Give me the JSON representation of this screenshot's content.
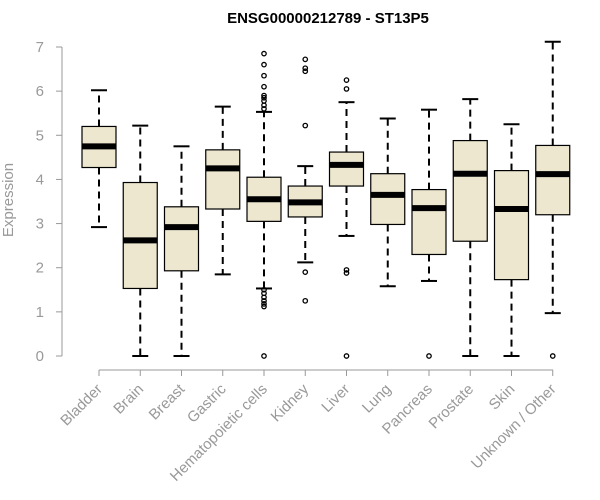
{
  "chart_data": {
    "type": "box",
    "title": "ENSG00000212789 - ST13P5",
    "ylabel": "Expression",
    "xlabel": "",
    "ylim": [
      0,
      7
    ],
    "yticks": [
      "0",
      "1",
      "2",
      "3",
      "4",
      "5",
      "6",
      "7"
    ],
    "grid": false,
    "legend": "none",
    "colors": {
      "box_fill": "#ede7cf",
      "box_stroke": "#000000",
      "median": "#000000",
      "axis": "#999999",
      "text": "#999999",
      "title": "#000000"
    },
    "categories": [
      "Bladder",
      "Brain",
      "Breast",
      "Gastric",
      "Hematopoietic cells",
      "Kidney",
      "Liver",
      "Lung",
      "Pancreas",
      "Prostate",
      "Skin",
      "Unknown / Other"
    ],
    "boxes": [
      {
        "category": "Bladder",
        "whisker_low": 2.92,
        "q1": 4.27,
        "median": 4.75,
        "q3": 5.2,
        "whisker_high": 6.02,
        "outliers": []
      },
      {
        "category": "Brain",
        "whisker_low": 0.0,
        "q1": 1.53,
        "median": 2.62,
        "q3": 3.93,
        "whisker_high": 5.22,
        "outliers": []
      },
      {
        "category": "Breast",
        "whisker_low": 0.0,
        "q1": 1.93,
        "median": 2.92,
        "q3": 3.38,
        "whisker_high": 4.75,
        "outliers": []
      },
      {
        "category": "Gastric",
        "whisker_low": 1.85,
        "q1": 3.33,
        "median": 4.25,
        "q3": 4.67,
        "whisker_high": 5.65,
        "outliers": []
      },
      {
        "category": "Hematopoietic cells",
        "whisker_low": 1.53,
        "q1": 3.05,
        "median": 3.55,
        "q3": 4.05,
        "whisker_high": 5.53,
        "outliers": [
          0.0,
          1.12,
          1.18,
          1.25,
          1.33,
          1.42,
          1.5,
          5.6,
          5.68,
          5.78,
          5.85,
          5.9,
          6.1,
          6.35,
          6.6,
          6.85
        ]
      },
      {
        "category": "Kidney",
        "whisker_low": 2.12,
        "q1": 3.15,
        "median": 3.48,
        "q3": 3.85,
        "whisker_high": 4.3,
        "outliers": [
          1.25,
          1.9,
          5.22,
          6.45,
          6.52,
          6.72
        ]
      },
      {
        "category": "Liver",
        "whisker_low": 2.72,
        "q1": 3.85,
        "median": 4.33,
        "q3": 4.62,
        "whisker_high": 5.75,
        "outliers": [
          0.0,
          1.88,
          1.95,
          6.05,
          6.25
        ]
      },
      {
        "category": "Lung",
        "whisker_low": 1.58,
        "q1": 2.98,
        "median": 3.65,
        "q3": 4.13,
        "whisker_high": 5.38,
        "outliers": []
      },
      {
        "category": "Pancreas",
        "whisker_low": 1.7,
        "q1": 2.3,
        "median": 3.35,
        "q3": 3.77,
        "whisker_high": 5.58,
        "outliers": [
          0.0
        ]
      },
      {
        "category": "Prostate",
        "whisker_low": 0.0,
        "q1": 2.6,
        "median": 4.13,
        "q3": 4.88,
        "whisker_high": 5.82,
        "outliers": []
      },
      {
        "category": "Skin",
        "whisker_low": 0.0,
        "q1": 1.73,
        "median": 3.33,
        "q3": 4.2,
        "whisker_high": 5.25,
        "outliers": []
      },
      {
        "category": "Unknown / Other",
        "whisker_low": 0.97,
        "q1": 3.2,
        "median": 4.12,
        "q3": 4.77,
        "whisker_high": 7.12,
        "outliers": [
          0.0
        ]
      }
    ]
  }
}
